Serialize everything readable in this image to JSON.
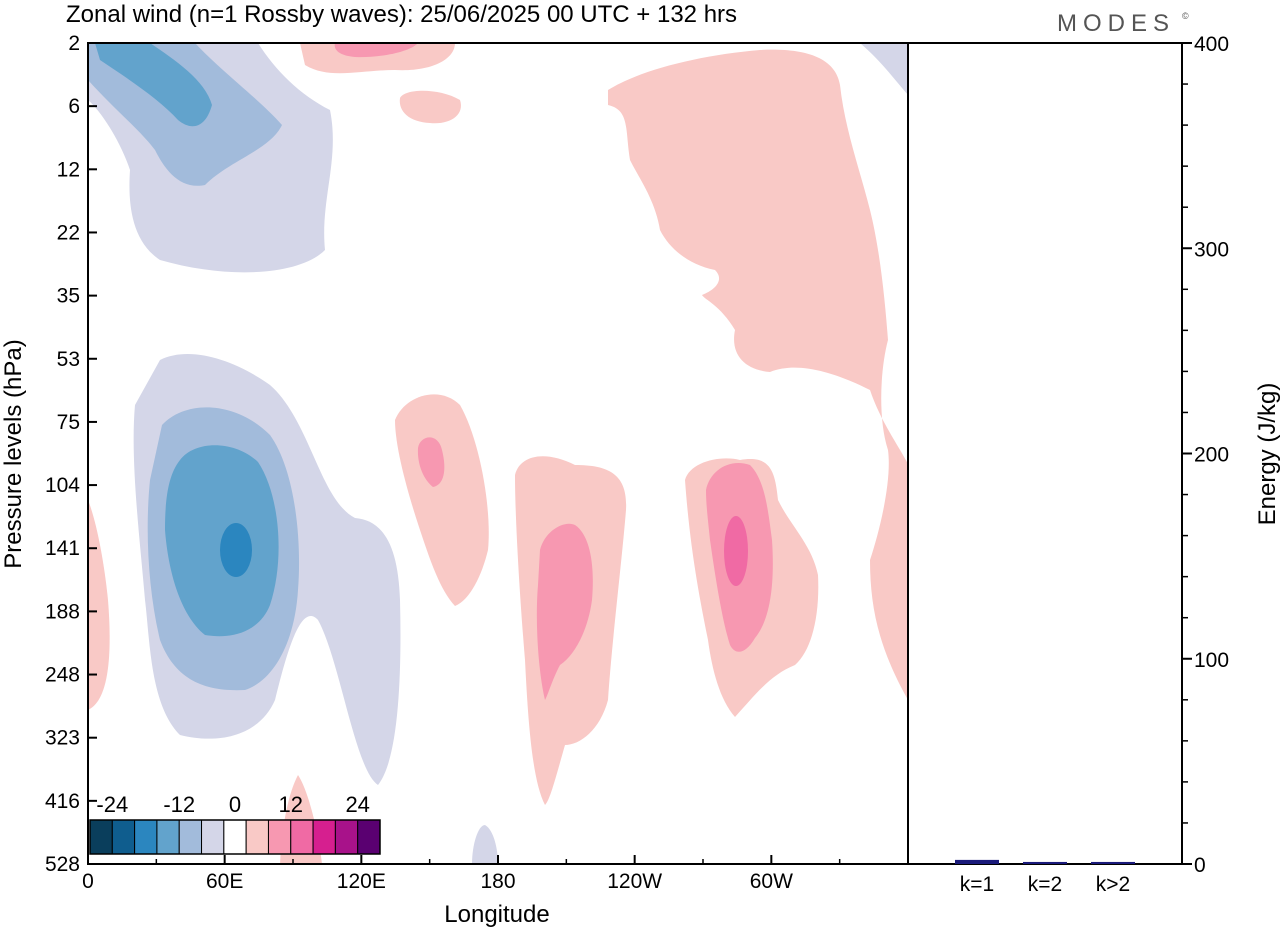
{
  "title": "Zonal wind (n=1 Rossby waves):  25/06/2025  00 UTC  + 132 hrs",
  "logo": "MODES",
  "logo_mark": "©",
  "colors": {
    "negative": [
      "#0a3e5c",
      "#0f5d8e",
      "#2b86bf",
      "#62a3cc",
      "#a2bbdb",
      "#d4d6e8"
    ],
    "zero": "#ffffff",
    "positive": [
      "#f9c9c6",
      "#f798b1",
      "#f06aa4",
      "#d61f8f",
      "#a8128a",
      "#5a0071"
    ],
    "energy_bar": "#1a1a7a"
  },
  "chart_data": [
    {
      "type": "heatmap",
      "title": "Zonal wind (n=1 Rossby waves):  25/06/2025  00 UTC  + 132 hrs",
      "xlabel": "Longitude",
      "ylabel": "Pressure levels (hPa)",
      "x_ticks": [
        "0",
        "60E",
        "120E",
        "180",
        "120W",
        "60W"
      ],
      "y_ticks": [
        "2",
        "6",
        "12",
        "22",
        "35",
        "53",
        "75",
        "104",
        "141",
        "188",
        "248",
        "323",
        "416",
        "528"
      ],
      "colorbar": {
        "tick_labels": [
          "-24",
          "-12",
          "0",
          "12",
          "24"
        ],
        "levels": [
          -30,
          -25,
          -20,
          -15,
          -10,
          -5,
          -2,
          2,
          5,
          10,
          15,
          20,
          25,
          30
        ]
      },
      "features": [
        {
          "name": "negative upper-left",
          "lon": 40,
          "level": "6",
          "min_value": -12
        },
        {
          "name": "negative core",
          "lon": 63,
          "level": "141",
          "min_value": -20
        },
        {
          "name": "positive 150E",
          "lon": 150,
          "level": "104",
          "max_value": 10
        },
        {
          "name": "positive 160W",
          "lon": 207,
          "level": "188",
          "max_value": 10
        },
        {
          "name": "positive 70W",
          "lon": 285,
          "level": "141",
          "max_value": 15
        },
        {
          "name": "positive upper-right",
          "lon": 310,
          "level": "22",
          "max_value": 5
        }
      ]
    },
    {
      "type": "bar",
      "categories": [
        "k=1",
        "k=2",
        "k>2"
      ],
      "values": [
        2,
        1,
        1
      ],
      "ylabel": "Energy (J/kg)",
      "ylim": [
        0,
        400
      ],
      "y_ticks": [
        "0",
        "100",
        "200",
        "300",
        "400"
      ]
    }
  ]
}
